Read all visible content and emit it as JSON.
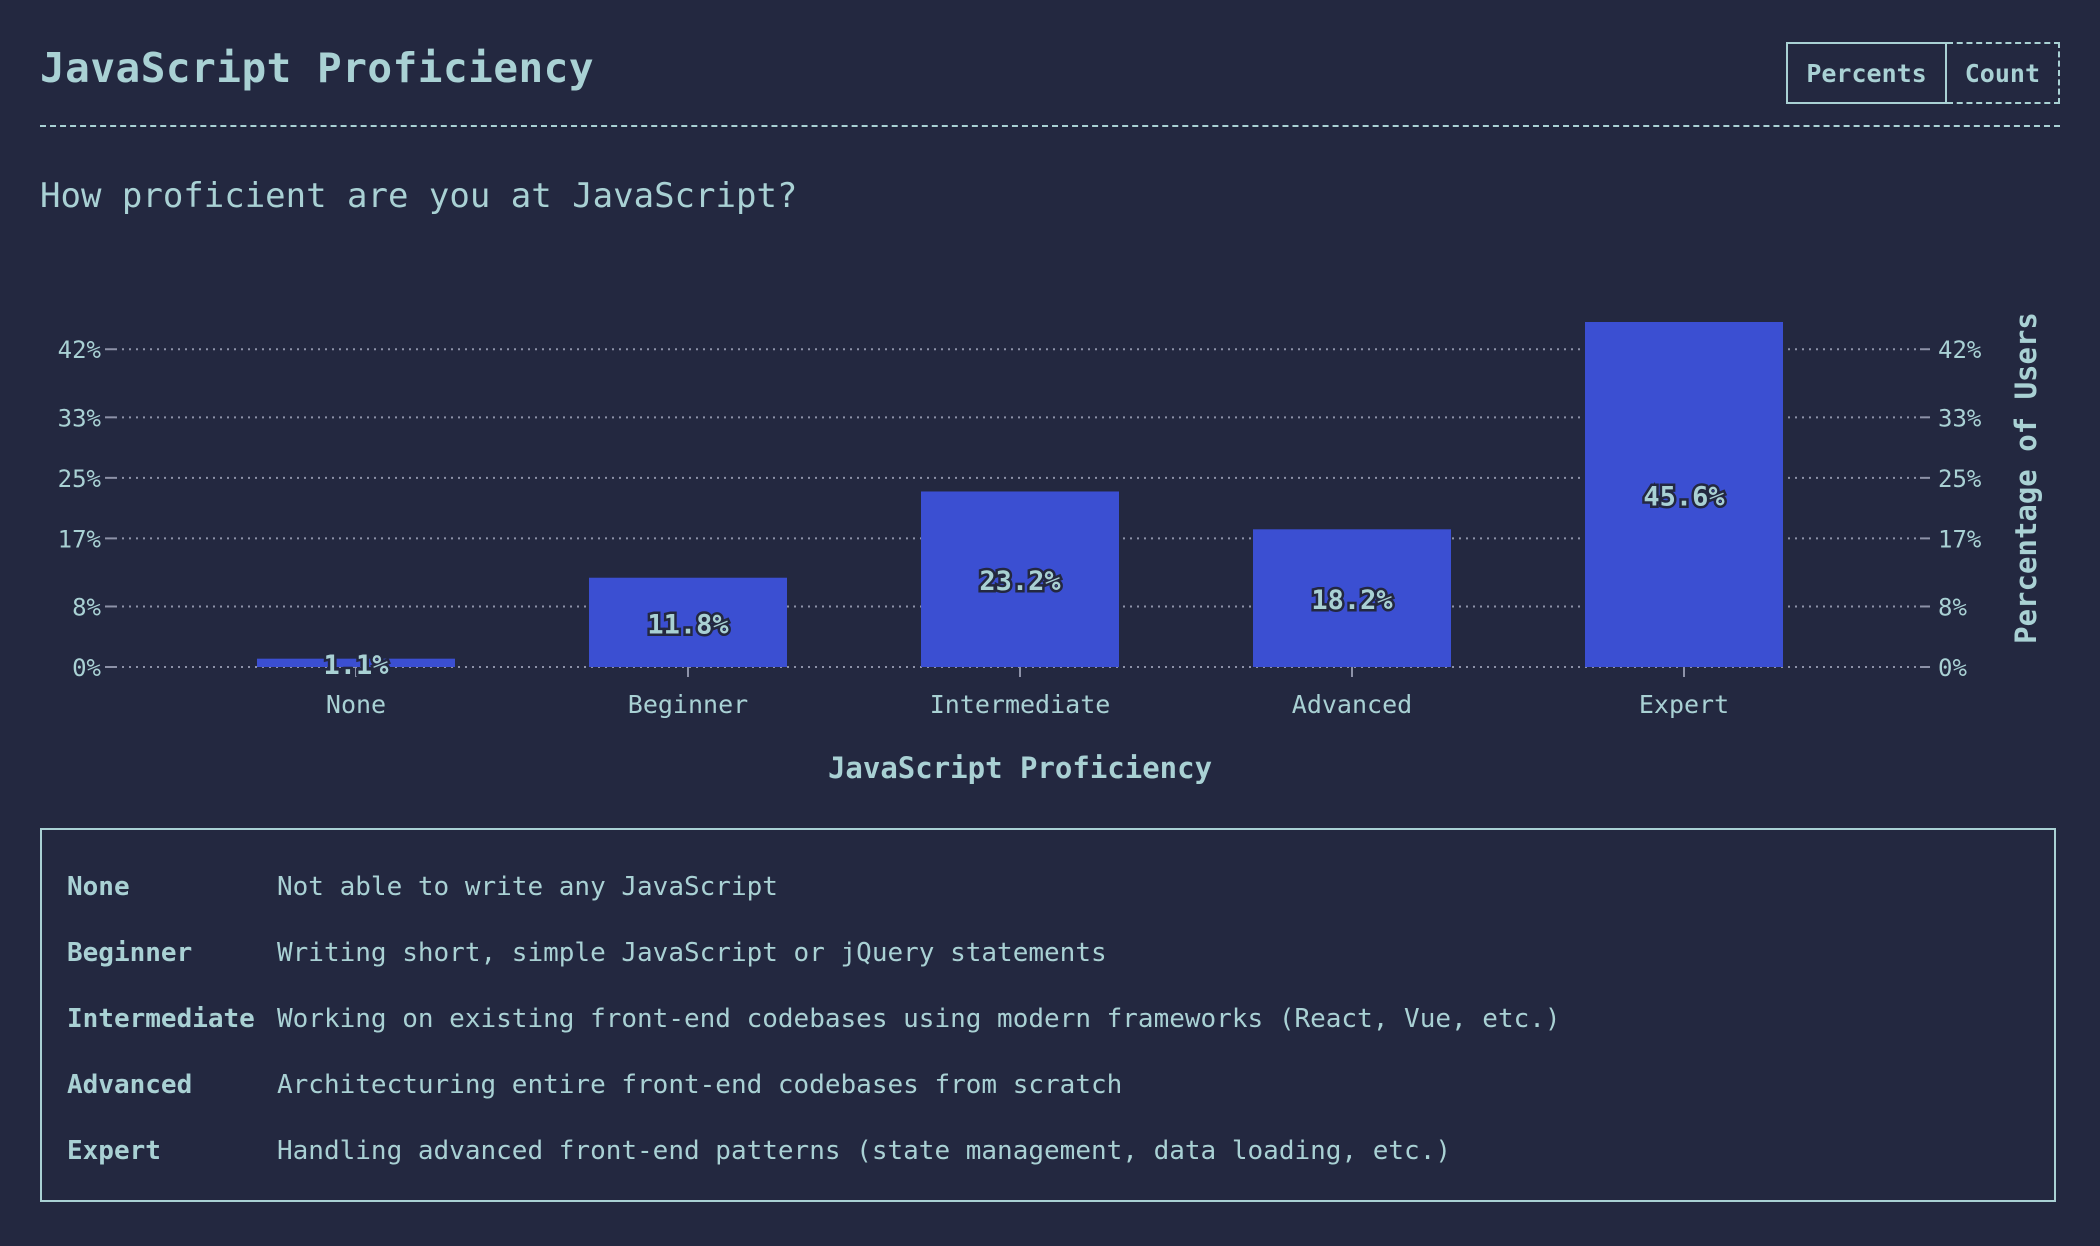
{
  "header": {
    "title": "JavaScript Proficiency",
    "units": [
      {
        "label": "Percents",
        "active": true
      },
      {
        "label": "Count",
        "active": false
      }
    ]
  },
  "question": "How proficient are you at JavaScript?",
  "chart_data": {
    "type": "bar",
    "title": "",
    "categories": [
      "None",
      "Beginner",
      "Intermediate",
      "Advanced",
      "Expert"
    ],
    "values": [
      1.1,
      11.8,
      23.2,
      18.2,
      45.6
    ],
    "value_labels": [
      "1.1%",
      "11.8%",
      "23.2%",
      "18.2%",
      "45.6%"
    ],
    "xlabel": "JavaScript Proficiency",
    "ylabel": "Percentage of Users",
    "yticks": [
      0,
      8,
      17,
      25,
      33,
      42
    ],
    "ytick_labels": [
      "0%",
      "8%",
      "17%",
      "25%",
      "33%",
      "42%"
    ],
    "ylim": [
      0,
      45.6
    ],
    "grid": true,
    "bar_color": "#3b4fd2"
  },
  "legend": [
    {
      "key": "None",
      "desc": "Not able to write any JavaScript"
    },
    {
      "key": "Beginner",
      "desc": "Writing short, simple JavaScript or jQuery statements"
    },
    {
      "key": "Intermediate",
      "desc": "Working on existing front-end codebases using modern frameworks (React, Vue, etc.)"
    },
    {
      "key": "Advanced",
      "desc": "Architecturing entire front-end codebases from scratch"
    },
    {
      "key": "Expert",
      "desc": "Handling advanced front-end patterns (state management, data loading, etc.)"
    }
  ],
  "colors": {
    "background": "#232840",
    "text": "#a9d1d4",
    "grid": "#8d92a8",
    "bar": "#3b4fd2"
  }
}
